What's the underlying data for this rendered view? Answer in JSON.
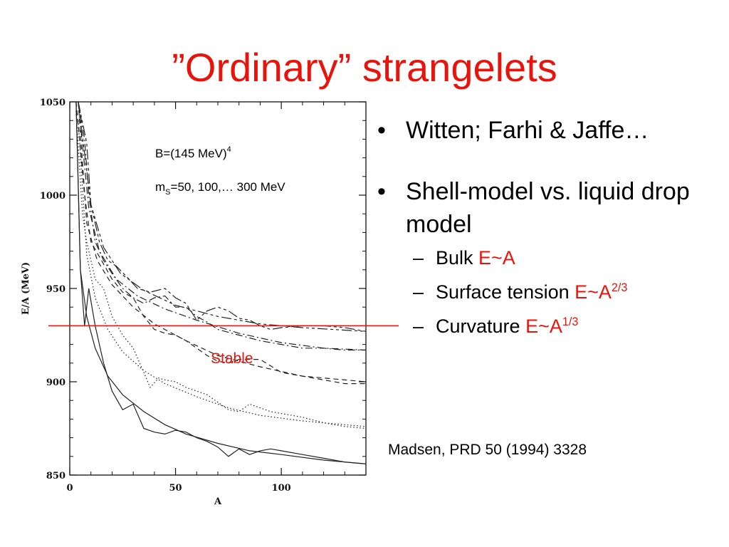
{
  "title": "”Ordinary” strangelets",
  "bullets": [
    {
      "text": "Witten; Farhi & Jaffe…"
    },
    {
      "text": "Shell-model vs. liquid drop model"
    }
  ],
  "sub_bullets": [
    {
      "label": "Bulk ",
      "expr": "E~A",
      "sup": ""
    },
    {
      "label": "Surface tension ",
      "expr": "E~A",
      "sup": "2/3"
    },
    {
      "label": "Curvature ",
      "expr": "E~A",
      "sup": "1/3"
    }
  ],
  "citation": "Madsen, PRD 50 (1994) 3328",
  "plot_annotation": {
    "b_base": "B=(145 MeV)",
    "b_sup": "4",
    "m_base": "m",
    "m_sub": "S",
    "m_rest": "=50, 100,… 300 MeV"
  },
  "stable_label": "Stable",
  "colors": {
    "accent_red": "#e8140c"
  },
  "chart_data": {
    "type": "line",
    "xlabel": "A",
    "ylabel": "E/A (MeV)",
    "xlim": [
      0,
      140
    ],
    "ylim": [
      850,
      1050
    ],
    "x_ticks": [
      0,
      50,
      100
    ],
    "y_ticks": [
      850,
      900,
      950,
      1000,
      1050
    ],
    "reference_line": {
      "y": 930,
      "label": "Stable"
    },
    "series": [
      {
        "style": "solid",
        "shell": [
          [
            3,
            1050
          ],
          [
            5,
            960
          ],
          [
            7,
            930
          ],
          [
            9,
            950
          ],
          [
            12,
            930
          ],
          [
            16,
            910
          ],
          [
            20,
            895
          ],
          [
            25,
            885
          ],
          [
            30,
            888
          ],
          [
            35,
            875
          ],
          [
            40,
            873
          ],
          [
            45,
            872
          ],
          [
            50,
            874
          ],
          [
            55,
            873
          ],
          [
            60,
            870
          ],
          [
            65,
            868
          ],
          [
            70,
            865
          ],
          [
            75,
            860
          ],
          [
            80,
            864
          ],
          [
            85,
            861
          ],
          [
            90,
            863
          ],
          [
            95,
            864
          ],
          [
            100,
            863
          ],
          [
            110,
            861
          ],
          [
            120,
            859
          ],
          [
            130,
            857
          ],
          [
            140,
            856
          ]
        ],
        "smooth": [
          [
            3,
            1050
          ],
          [
            5,
            960
          ],
          [
            8,
            935
          ],
          [
            12,
            918
          ],
          [
            18,
            903
          ],
          [
            25,
            893
          ],
          [
            35,
            884
          ],
          [
            45,
            877
          ],
          [
            55,
            872
          ],
          [
            70,
            867
          ],
          [
            85,
            863
          ],
          [
            100,
            861
          ],
          [
            120,
            858
          ],
          [
            140,
            856
          ]
        ]
      },
      {
        "style": "dotted",
        "shell": [
          [
            3,
            1045
          ],
          [
            6,
            990
          ],
          [
            8,
            975
          ],
          [
            12,
            955
          ],
          [
            16,
            950
          ],
          [
            20,
            935
          ],
          [
            25,
            925
          ],
          [
            30,
            918
          ],
          [
            35,
            905
          ],
          [
            38,
            897
          ],
          [
            42,
            902
          ],
          [
            45,
            901
          ],
          [
            50,
            900
          ],
          [
            55,
            897
          ],
          [
            60,
            895
          ],
          [
            65,
            893
          ],
          [
            70,
            889
          ],
          [
            75,
            885
          ],
          [
            80,
            884
          ],
          [
            85,
            888
          ],
          [
            90,
            886
          ],
          [
            95,
            884
          ],
          [
            100,
            883
          ],
          [
            110,
            881
          ],
          [
            120,
            878
          ],
          [
            130,
            876
          ],
          [
            140,
            875
          ]
        ],
        "smooth": [
          [
            4,
            1040
          ],
          [
            8,
            968
          ],
          [
            12,
            945
          ],
          [
            18,
            928
          ],
          [
            25,
            916
          ],
          [
            35,
            906
          ],
          [
            45,
            899
          ],
          [
            60,
            892
          ],
          [
            75,
            886
          ],
          [
            90,
            882
          ],
          [
            110,
            879
          ],
          [
            140,
            876
          ]
        ]
      },
      {
        "style": "dashed",
        "shell": [
          [
            3,
            1050
          ],
          [
            7,
            1000
          ],
          [
            10,
            975
          ],
          [
            15,
            965
          ],
          [
            20,
            955
          ],
          [
            25,
            948
          ],
          [
            30,
            945
          ],
          [
            35,
            935
          ],
          [
            40,
            928
          ],
          [
            45,
            926
          ],
          [
            50,
            925
          ],
          [
            55,
            922
          ],
          [
            60,
            918
          ],
          [
            65,
            914
          ],
          [
            70,
            911
          ],
          [
            75,
            910
          ],
          [
            80,
            912
          ],
          [
            90,
            912
          ],
          [
            100,
            905
          ],
          [
            110,
            903
          ],
          [
            120,
            901
          ],
          [
            130,
            899
          ],
          [
            140,
            899
          ]
        ],
        "smooth": [
          [
            4,
            1050
          ],
          [
            8,
            985
          ],
          [
            13,
            965
          ],
          [
            20,
            952
          ],
          [
            30,
            940
          ],
          [
            40,
            931
          ],
          [
            55,
            922
          ],
          [
            70,
            914
          ],
          [
            90,
            908
          ],
          [
            110,
            903
          ],
          [
            140,
            900
          ]
        ]
      },
      {
        "style": "dash-dot",
        "shell": [
          [
            4,
            1050
          ],
          [
            7,
            1030
          ],
          [
            9,
            1000
          ],
          [
            12,
            975
          ],
          [
            16,
            965
          ],
          [
            20,
            958
          ],
          [
            25,
            950
          ],
          [
            30,
            945
          ],
          [
            35,
            942
          ],
          [
            40,
            945
          ],
          [
            45,
            946
          ],
          [
            50,
            940
          ],
          [
            55,
            940
          ],
          [
            60,
            935
          ],
          [
            65,
            932
          ],
          [
            70,
            928
          ],
          [
            80,
            925
          ],
          [
            90,
            922
          ],
          [
            100,
            920
          ],
          [
            110,
            918
          ],
          [
            120,
            918
          ],
          [
            130,
            917
          ],
          [
            140,
            917
          ]
        ],
        "smooth": [
          [
            4,
            1050
          ],
          [
            9,
            993
          ],
          [
            14,
            970
          ],
          [
            22,
            955
          ],
          [
            32,
            946
          ],
          [
            45,
            939
          ],
          [
            60,
            933
          ],
          [
            80,
            926
          ],
          [
            100,
            921
          ],
          [
            120,
            918
          ],
          [
            140,
            917
          ]
        ]
      },
      {
        "style": "long-dash",
        "shell": [
          [
            4,
            1050
          ],
          [
            8,
            1028
          ],
          [
            10,
            995
          ],
          [
            14,
            975
          ],
          [
            18,
            965
          ],
          [
            22,
            962
          ],
          [
            28,
            955
          ],
          [
            32,
            950
          ],
          [
            38,
            948
          ],
          [
            45,
            950
          ],
          [
            50,
            945
          ],
          [
            55,
            942
          ],
          [
            60,
            933
          ],
          [
            65,
            938
          ],
          [
            70,
            940
          ],
          [
            75,
            938
          ],
          [
            80,
            934
          ],
          [
            85,
            933
          ],
          [
            90,
            930
          ],
          [
            95,
            928
          ],
          [
            100,
            929
          ],
          [
            110,
            930
          ],
          [
            120,
            930
          ],
          [
            130,
            929
          ],
          [
            140,
            927
          ]
        ],
        "smooth": [
          [
            4,
            1050
          ],
          [
            10,
            995
          ],
          [
            16,
            972
          ],
          [
            24,
            958
          ],
          [
            35,
            949
          ],
          [
            50,
            941
          ],
          [
            70,
            935
          ],
          [
            90,
            931
          ],
          [
            110,
            929
          ],
          [
            140,
            927
          ]
        ]
      }
    ]
  }
}
